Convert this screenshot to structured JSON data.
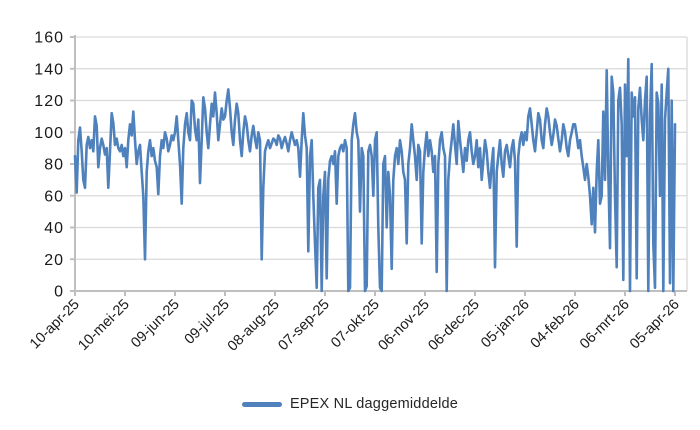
{
  "chart_data": {
    "type": "line",
    "title": "",
    "xlabel": "",
    "ylabel": "",
    "ylim": [
      0,
      160
    ],
    "y_ticks": [
      0,
      20,
      40,
      60,
      80,
      100,
      120,
      140,
      160
    ],
    "grid": "horizontal",
    "legend_position": "bottom",
    "x_tick_labels": [
      "10-apr-25",
      "10-mei-25",
      "09-jun-25",
      "09-jul-25",
      "08-aug-25",
      "07-sep-25",
      "07-okt-25",
      "06-nov-25",
      "06-dec-25",
      "05-jan-26",
      "04-feb-26",
      "06-mrt-26",
      "05-apr-26"
    ],
    "x_tick_day_indices": [
      0,
      30,
      60,
      90,
      120,
      150,
      180,
      210,
      240,
      270,
      300,
      330,
      360
    ],
    "colors": {
      "line": "#4F81BD",
      "grid": "#D9D9D9",
      "axis": "#BFBFBF",
      "text": "#1A1A1A"
    },
    "series": [
      {
        "name": "EPEX NL daggemiddelde",
        "color": "#4F81BD",
        "values": [
          85,
          62,
          95,
          103,
          88,
          70,
          65,
          92,
          97,
          90,
          95,
          88,
          110,
          104,
          78,
          90,
          96,
          92,
          86,
          90,
          65,
          88,
          112,
          106,
          92,
          96,
          90,
          88,
          92,
          85,
          90,
          78,
          95,
          105,
          98,
          113,
          95,
          80,
          88,
          92,
          75,
          60,
          20,
          75,
          88,
          95,
          85,
          90,
          82,
          78,
          61,
          85,
          95,
          90,
          100,
          96,
          88,
          92,
          98,
          95,
          100,
          110,
          95,
          80,
          55,
          90,
          105,
          112,
          100,
          95,
          120,
          118,
          102,
          95,
          108,
          68,
          95,
          122,
          115,
          100,
          90,
          105,
          118,
          110,
          125,
          112,
          95,
          105,
          115,
          108,
          110,
          120,
          127,
          115,
          100,
          92,
          108,
          118,
          112,
          95,
          85,
          100,
          110,
          105,
          95,
          88,
          98,
          104,
          96,
          90,
          100,
          95,
          20,
          65,
          88,
          92,
          95,
          90,
          93,
          96,
          95,
          92,
          98,
          96,
          90,
          94,
          97,
          93,
          88,
          95,
          100,
          96,
          92,
          95,
          90,
          72,
          95,
          112,
          98,
          90,
          25,
          85,
          95,
          60,
          30,
          2,
          65,
          70,
          0,
          60,
          75,
          8,
          70,
          82,
          85,
          80,
          88,
          55,
          85,
          90,
          92,
          88,
          95,
          90,
          0,
          2,
          95,
          105,
          112,
          100,
          95,
          50,
          90,
          85,
          0,
          3,
          88,
          92,
          85,
          60,
          95,
          100,
          40,
          2,
          0,
          80,
          85,
          40,
          75,
          60,
          14,
          70,
          85,
          90,
          80,
          95,
          88,
          75,
          70,
          30,
          80,
          90,
          105,
          95,
          85,
          70,
          92,
          88,
          30,
          75,
          90,
          100,
          85,
          95,
          88,
          75,
          85,
          12,
          80,
          95,
          100,
          90,
          85,
          0,
          70,
          85,
          95,
          105,
          92,
          80,
          107,
          95,
          85,
          75,
          90,
          82,
          95,
          100,
          88,
          80,
          85,
          95,
          78,
          90,
          70,
          82,
          95,
          88,
          75,
          65,
          80,
          90,
          15,
          75,
          85,
          95,
          80,
          72,
          88,
          92,
          85,
          78,
          90,
          95,
          82,
          28,
          85,
          95,
          100,
          92,
          100,
          95,
          110,
          115,
          105,
          95,
          88,
          100,
          112,
          108,
          95,
          90,
          105,
          115,
          110,
          100,
          92,
          98,
          108,
          104,
          96,
          88,
          95,
          105,
          100,
          90,
          85,
          95,
          100,
          105,
          105,
          98,
          90,
          95,
          85,
          78,
          70,
          80,
          72,
          60,
          42,
          65,
          37,
          75,
          95,
          55,
          60,
          113,
          70,
          139,
          75,
          27,
          135,
          125,
          60,
          15,
          120,
          128,
          105,
          7,
          130,
          85,
          146,
          0,
          125,
          110,
          122,
          8,
          115,
          128,
          108,
          95,
          120,
          135,
          0,
          110,
          143,
          30,
          2,
          125,
          118,
          60,
          130,
          0,
          108,
          125,
          140,
          5,
          120,
          0,
          105
        ]
      }
    ]
  },
  "legend": {
    "label": "EPEX NL daggemiddelde"
  }
}
